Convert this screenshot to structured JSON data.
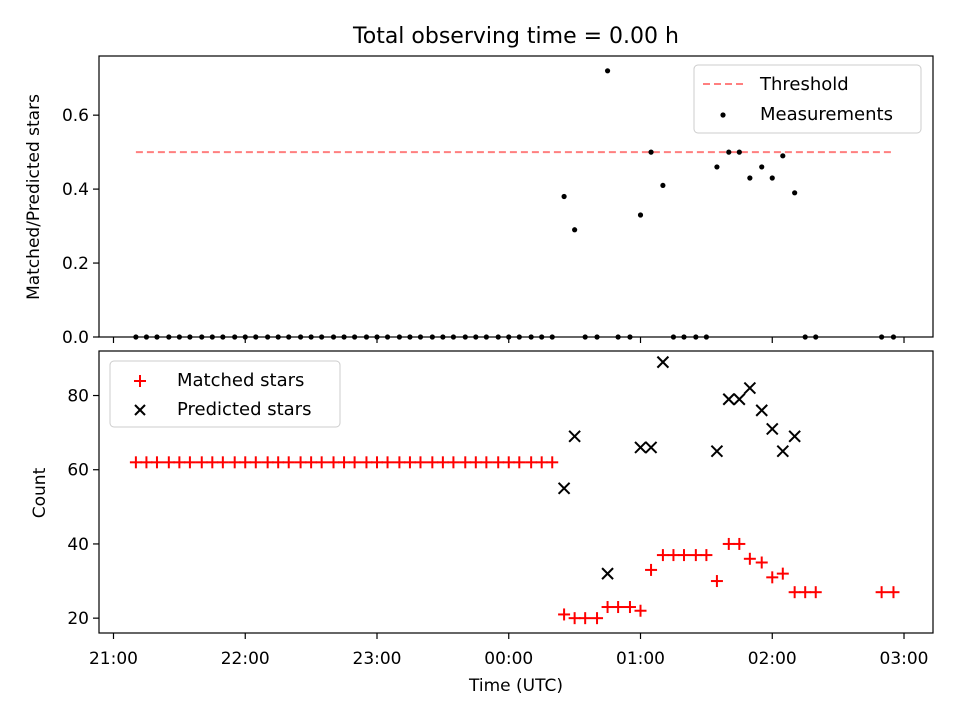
{
  "chart_data": {
    "title": "Total observing time = 0.00 h",
    "xlabel": "Time (UTC)",
    "x_ticks": [
      "21:00",
      "22:00",
      "23:00",
      "00:00",
      "01:00",
      "02:00",
      "03:00"
    ],
    "x_range_hours": [
      20.89,
      27.22
    ],
    "top_panel": {
      "type": "scatter",
      "ylabel": "Matched/Predicted stars",
      "ylim": [
        0,
        0.76
      ],
      "y_ticks": [
        "0.0",
        "0.2",
        "0.4",
        "0.6"
      ],
      "legend_position": "top-right",
      "threshold": {
        "name": "Threshold",
        "value": 0.5,
        "x_start": 21.17,
        "x_end": 26.92,
        "color": "#ff7f7f"
      },
      "series": [
        {
          "name": "Measurements",
          "color": "#000000",
          "points": [
            [
              21.17,
              0
            ],
            [
              21.25,
              0
            ],
            [
              21.33,
              0
            ],
            [
              21.42,
              0
            ],
            [
              21.5,
              0
            ],
            [
              21.58,
              0
            ],
            [
              21.67,
              0
            ],
            [
              21.75,
              0
            ],
            [
              21.83,
              0
            ],
            [
              21.92,
              0
            ],
            [
              22.0,
              0
            ],
            [
              22.08,
              0
            ],
            [
              22.17,
              0
            ],
            [
              22.25,
              0
            ],
            [
              22.33,
              0
            ],
            [
              22.42,
              0
            ],
            [
              22.5,
              0
            ],
            [
              22.58,
              0
            ],
            [
              22.67,
              0
            ],
            [
              22.75,
              0
            ],
            [
              22.83,
              0
            ],
            [
              22.92,
              0
            ],
            [
              23.0,
              0
            ],
            [
              23.08,
              0
            ],
            [
              23.17,
              0
            ],
            [
              23.25,
              0
            ],
            [
              23.33,
              0
            ],
            [
              23.42,
              0
            ],
            [
              23.5,
              0
            ],
            [
              23.58,
              0
            ],
            [
              23.67,
              0
            ],
            [
              23.75,
              0
            ],
            [
              23.83,
              0
            ],
            [
              23.92,
              0
            ],
            [
              24.0,
              0
            ],
            [
              24.08,
              0
            ],
            [
              24.17,
              0
            ],
            [
              24.25,
              0
            ],
            [
              24.33,
              0
            ],
            [
              24.42,
              0.38
            ],
            [
              24.5,
              0.29
            ],
            [
              24.58,
              0
            ],
            [
              24.67,
              0
            ],
            [
              24.75,
              0.72
            ],
            [
              24.83,
              0
            ],
            [
              24.92,
              0
            ],
            [
              25.0,
              0.33
            ],
            [
              25.08,
              0.5
            ],
            [
              25.17,
              0.41
            ],
            [
              25.25,
              0
            ],
            [
              25.33,
              0
            ],
            [
              25.42,
              0
            ],
            [
              25.5,
              0
            ],
            [
              25.58,
              0.46
            ],
            [
              25.67,
              0.5
            ],
            [
              25.75,
              0.5
            ],
            [
              25.83,
              0.43
            ],
            [
              25.92,
              0.46
            ],
            [
              26.0,
              0.43
            ],
            [
              26.08,
              0.49
            ],
            [
              26.17,
              0.39
            ],
            [
              26.25,
              0
            ],
            [
              26.33,
              0
            ],
            [
              26.83,
              0
            ],
            [
              26.92,
              0
            ]
          ]
        }
      ]
    },
    "bottom_panel": {
      "type": "scatter",
      "ylabel": "Count",
      "ylim": [
        16,
        92
      ],
      "y_ticks": [
        "20",
        "40",
        "60",
        "80"
      ],
      "legend_position": "top-left",
      "series": [
        {
          "name": "Matched stars",
          "marker": "plus",
          "color": "#ff0000",
          "points": [
            [
              21.17,
              62
            ],
            [
              21.25,
              62
            ],
            [
              21.33,
              62
            ],
            [
              21.42,
              62
            ],
            [
              21.5,
              62
            ],
            [
              21.58,
              62
            ],
            [
              21.67,
              62
            ],
            [
              21.75,
              62
            ],
            [
              21.83,
              62
            ],
            [
              21.92,
              62
            ],
            [
              22.0,
              62
            ],
            [
              22.08,
              62
            ],
            [
              22.17,
              62
            ],
            [
              22.25,
              62
            ],
            [
              22.33,
              62
            ],
            [
              22.42,
              62
            ],
            [
              22.5,
              62
            ],
            [
              22.58,
              62
            ],
            [
              22.67,
              62
            ],
            [
              22.75,
              62
            ],
            [
              22.83,
              62
            ],
            [
              22.92,
              62
            ],
            [
              23.0,
              62
            ],
            [
              23.08,
              62
            ],
            [
              23.17,
              62
            ],
            [
              23.25,
              62
            ],
            [
              23.33,
              62
            ],
            [
              23.42,
              62
            ],
            [
              23.5,
              62
            ],
            [
              23.58,
              62
            ],
            [
              23.67,
              62
            ],
            [
              23.75,
              62
            ],
            [
              23.83,
              62
            ],
            [
              23.92,
              62
            ],
            [
              24.0,
              62
            ],
            [
              24.08,
              62
            ],
            [
              24.17,
              62
            ],
            [
              24.25,
              62
            ],
            [
              24.33,
              62
            ],
            [
              24.42,
              21
            ],
            [
              24.5,
              20
            ],
            [
              24.58,
              20
            ],
            [
              24.67,
              20
            ],
            [
              24.75,
              23
            ],
            [
              24.83,
              23
            ],
            [
              24.92,
              23
            ],
            [
              25.0,
              22
            ],
            [
              25.08,
              33
            ],
            [
              25.17,
              37
            ],
            [
              25.25,
              37
            ],
            [
              25.33,
              37
            ],
            [
              25.42,
              37
            ],
            [
              25.5,
              37
            ],
            [
              25.58,
              30
            ],
            [
              25.67,
              40
            ],
            [
              25.75,
              40
            ],
            [
              25.83,
              36
            ],
            [
              25.92,
              35
            ],
            [
              26.0,
              31
            ],
            [
              26.08,
              32
            ],
            [
              26.17,
              27
            ],
            [
              26.25,
              27
            ],
            [
              26.33,
              27
            ],
            [
              26.83,
              27
            ],
            [
              26.92,
              27
            ]
          ]
        },
        {
          "name": "Predicted stars",
          "marker": "x",
          "color": "#000000",
          "points": [
            [
              24.42,
              55
            ],
            [
              24.5,
              69
            ],
            [
              24.75,
              32
            ],
            [
              25.0,
              66
            ],
            [
              25.08,
              66
            ],
            [
              25.17,
              89
            ],
            [
              25.58,
              65
            ],
            [
              25.67,
              79
            ],
            [
              25.75,
              79
            ],
            [
              25.83,
              82
            ],
            [
              25.92,
              76
            ],
            [
              26.0,
              71
            ],
            [
              26.08,
              65
            ],
            [
              26.17,
              69
            ]
          ]
        }
      ]
    }
  }
}
